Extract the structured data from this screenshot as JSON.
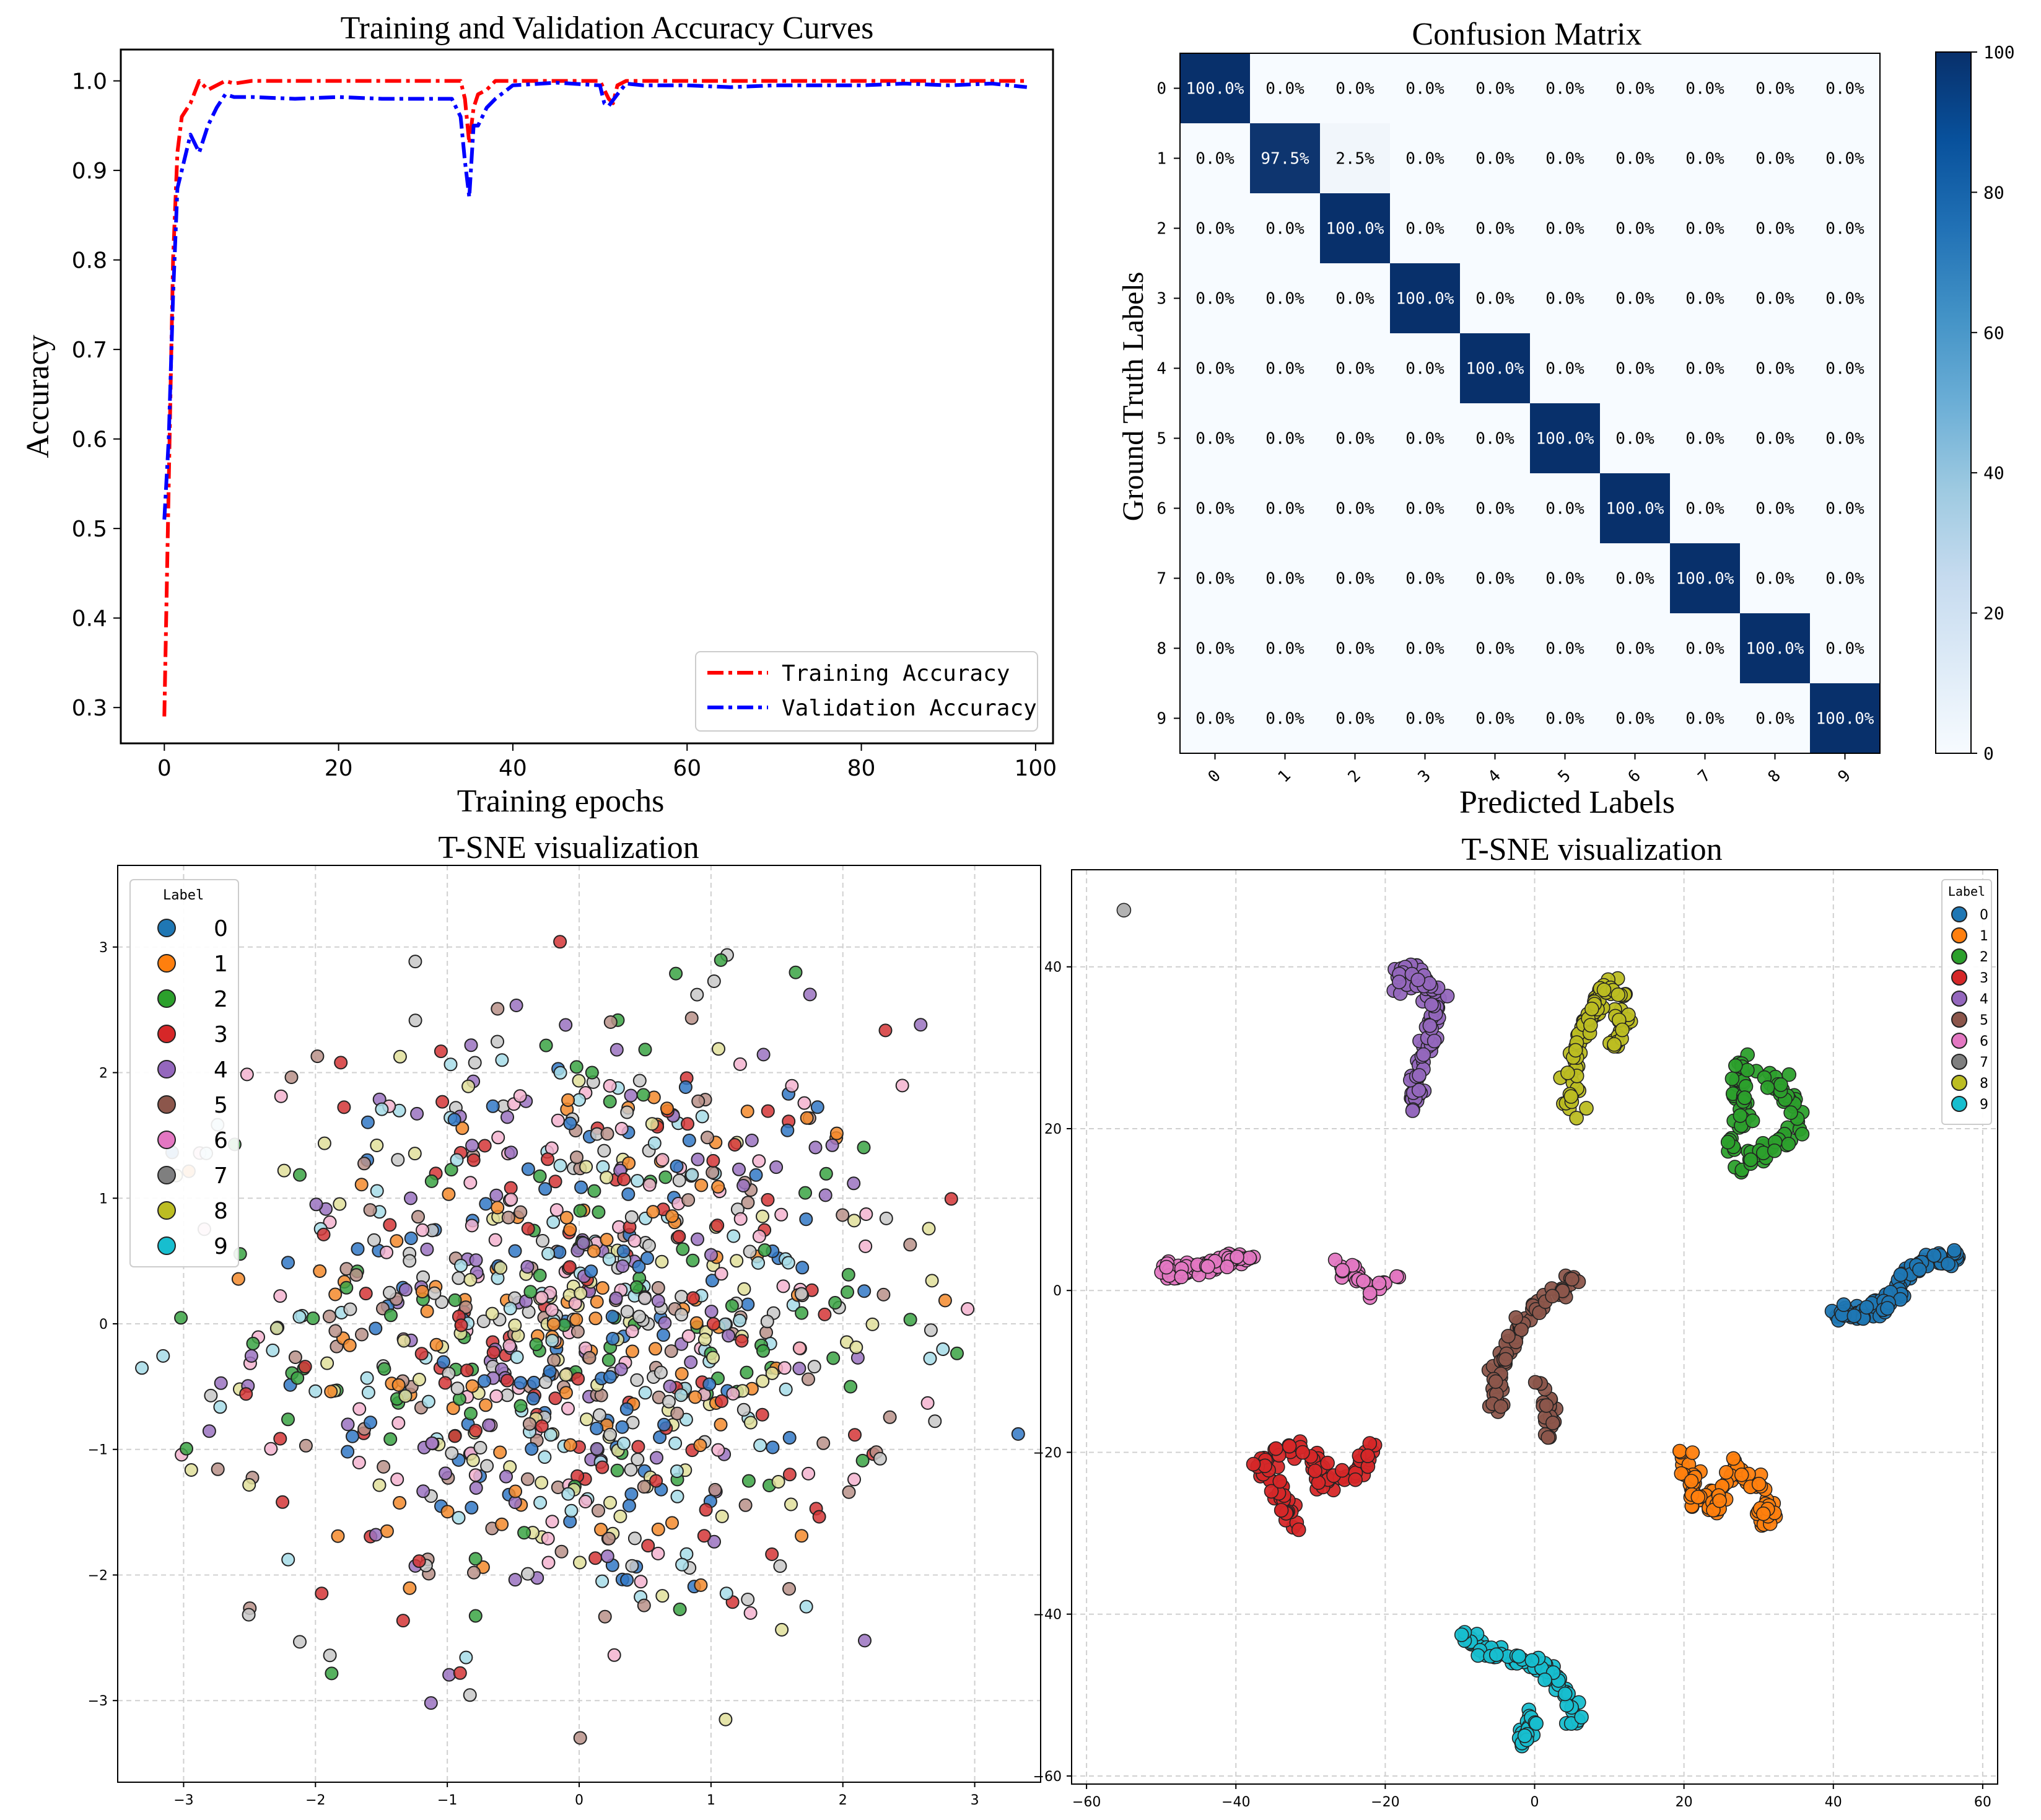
{
  "colors": {
    "tab10": [
      "#1f77b4",
      "#ff7f0e",
      "#2ca02c",
      "#d62728",
      "#9467bd",
      "#8c564b",
      "#e377c2",
      "#7f7f7f",
      "#bcbd22",
      "#17becf"
    ],
    "scatter_fill": [
      "#3178c6",
      "#f3892c",
      "#3aa343",
      "#d43536",
      "#9a72bf",
      "#b89088",
      "#f3b3cf",
      "#c8c8c8",
      "#e0df9a",
      "#a6dce7"
    ],
    "cmap_low": "#f7fbff",
    "cmap_high": "#08306b",
    "train_line": "#ff0000",
    "val_line": "#0000ff",
    "grid": "#d0d0d0"
  },
  "chart_data": [
    {
      "id": "accuracy",
      "type": "line",
      "title": "Training and Validation Accuracy Curves",
      "xlabel": "Training epochs",
      "ylabel": "Accuracy",
      "xlim": [
        -5,
        102
      ],
      "ylim": [
        0.26,
        1.035
      ],
      "xticks": [
        0,
        20,
        40,
        60,
        80,
        100
      ],
      "xtick_labels": [
        "0",
        "20",
        "40",
        "60",
        "80",
        "100"
      ],
      "yticks": [
        0.3,
        0.4,
        0.5,
        0.6,
        0.7,
        0.8,
        0.9,
        1.0
      ],
      "ytick_labels": [
        "0.3",
        "0.4",
        "0.5",
        "0.6",
        "0.7",
        "0.8",
        "0.9",
        "1.0"
      ],
      "legend_position": "lower-right",
      "series": [
        {
          "name": "Training Accuracy",
          "color": "#ff0000",
          "x": [
            0,
            0.5,
            1,
            1.5,
            2,
            3,
            4,
            5,
            6,
            7,
            8,
            10,
            20,
            30,
            34,
            34.5,
            35,
            35.5,
            36,
            37,
            38,
            40,
            45,
            50,
            51,
            51.5,
            52,
            53,
            60,
            70,
            80,
            90,
            95,
            99
          ],
          "y": [
            0.29,
            0.55,
            0.8,
            0.92,
            0.96,
            0.975,
            1.0,
            0.99,
            0.995,
            1.0,
            0.997,
            1.0,
            1.0,
            1.0,
            1.0,
            0.98,
            0.93,
            0.97,
            0.985,
            0.99,
            1.0,
            1.0,
            1.0,
            1.0,
            0.98,
            0.975,
            0.995,
            1.0,
            1.0,
            1.0,
            1.0,
            1.0,
            1.0,
            1.0
          ]
        },
        {
          "name": "Validation Accuracy",
          "color": "#0000ff",
          "x": [
            0,
            0.5,
            1,
            1.5,
            2,
            3,
            4,
            5,
            6,
            7,
            8,
            10,
            15,
            20,
            25,
            30,
            33,
            34,
            34.5,
            35,
            35.5,
            36,
            37,
            38,
            40,
            45,
            50,
            50.5,
            51,
            52,
            53,
            55,
            60,
            65,
            70,
            80,
            85,
            90,
            95,
            99
          ],
          "y": [
            0.51,
            0.6,
            0.76,
            0.88,
            0.9,
            0.94,
            0.92,
            0.95,
            0.97,
            0.985,
            0.982,
            0.982,
            0.98,
            0.982,
            0.98,
            0.98,
            0.98,
            0.96,
            0.91,
            0.87,
            0.95,
            0.95,
            0.97,
            0.98,
            0.995,
            0.998,
            0.995,
            0.975,
            0.972,
            0.985,
            0.997,
            0.995,
            0.995,
            0.993,
            0.995,
            0.995,
            0.997,
            0.995,
            0.997,
            0.993
          ]
        }
      ]
    },
    {
      "id": "confusion",
      "type": "heatmap",
      "title": "Confusion Matrix",
      "xlabel": "Predicted Labels",
      "ylabel": "Ground Truth Labels",
      "row_labels": [
        "0",
        "1",
        "2",
        "3",
        "4",
        "5",
        "6",
        "7",
        "8",
        "9"
      ],
      "col_labels": [
        "0",
        "1",
        "2",
        "3",
        "4",
        "5",
        "6",
        "7",
        "8",
        "9"
      ],
      "values": [
        [
          100,
          0,
          0,
          0,
          0,
          0,
          0,
          0,
          0,
          0
        ],
        [
          0,
          97.5,
          2.5,
          0,
          0,
          0,
          0,
          0,
          0,
          0
        ],
        [
          0,
          0,
          100,
          0,
          0,
          0,
          0,
          0,
          0,
          0
        ],
        [
          0,
          0,
          0,
          100,
          0,
          0,
          0,
          0,
          0,
          0
        ],
        [
          0,
          0,
          0,
          0,
          100,
          0,
          0,
          0,
          0,
          0
        ],
        [
          0,
          0,
          0,
          0,
          0,
          100,
          0,
          0,
          0,
          0
        ],
        [
          0,
          0,
          0,
          0,
          0,
          0,
          100,
          0,
          0,
          0
        ],
        [
          0,
          0,
          0,
          0,
          0,
          0,
          0,
          100,
          0,
          0
        ],
        [
          0,
          0,
          0,
          0,
          0,
          0,
          0,
          0,
          100,
          0
        ],
        [
          0,
          0,
          0,
          0,
          0,
          0,
          0,
          0,
          0,
          100
        ]
      ],
      "cell_labels": [
        [
          "100.0%",
          "0.0%",
          "0.0%",
          "0.0%",
          "0.0%",
          "0.0%",
          "0.0%",
          "0.0%",
          "0.0%",
          "0.0%"
        ],
        [
          "0.0%",
          "97.5%",
          "2.5%",
          "0.0%",
          "0.0%",
          "0.0%",
          "0.0%",
          "0.0%",
          "0.0%",
          "0.0%"
        ],
        [
          "0.0%",
          "0.0%",
          "100.0%",
          "0.0%",
          "0.0%",
          "0.0%",
          "0.0%",
          "0.0%",
          "0.0%",
          "0.0%"
        ],
        [
          "0.0%",
          "0.0%",
          "0.0%",
          "100.0%",
          "0.0%",
          "0.0%",
          "0.0%",
          "0.0%",
          "0.0%",
          "0.0%"
        ],
        [
          "0.0%",
          "0.0%",
          "0.0%",
          "0.0%",
          "100.0%",
          "0.0%",
          "0.0%",
          "0.0%",
          "0.0%",
          "0.0%"
        ],
        [
          "0.0%",
          "0.0%",
          "0.0%",
          "0.0%",
          "0.0%",
          "100.0%",
          "0.0%",
          "0.0%",
          "0.0%",
          "0.0%"
        ],
        [
          "0.0%",
          "0.0%",
          "0.0%",
          "0.0%",
          "0.0%",
          "0.0%",
          "100.0%",
          "0.0%",
          "0.0%",
          "0.0%"
        ],
        [
          "0.0%",
          "0.0%",
          "0.0%",
          "0.0%",
          "0.0%",
          "0.0%",
          "0.0%",
          "100.0%",
          "0.0%",
          "0.0%"
        ],
        [
          "0.0%",
          "0.0%",
          "0.0%",
          "0.0%",
          "0.0%",
          "0.0%",
          "0.0%",
          "0.0%",
          "100.0%",
          "0.0%"
        ],
        [
          "0.0%",
          "0.0%",
          "0.0%",
          "0.0%",
          "0.0%",
          "0.0%",
          "0.0%",
          "0.0%",
          "0.0%",
          "100.0%"
        ]
      ],
      "colorbar_range": [
        0,
        100
      ],
      "colorbar_ticks": [
        0,
        20,
        40,
        60,
        80,
        100
      ],
      "colorbar_tick_labels": [
        "0",
        "20",
        "40",
        "60",
        "80",
        "100"
      ]
    },
    {
      "id": "tsne-before",
      "type": "scatter",
      "title": "T-SNE visualization",
      "xlim": [
        -3.5,
        3.5
      ],
      "ylim": [
        -3.65,
        3.65
      ],
      "xticks": [
        -3,
        -2,
        -1,
        0,
        1,
        2,
        3
      ],
      "xtick_labels": [
        "−3",
        "−2",
        "−1",
        "0",
        "1",
        "2",
        "3"
      ],
      "yticks": [
        -3,
        -2,
        -1,
        0,
        1,
        2,
        3
      ],
      "ytick_labels": [
        "−3",
        "−2",
        "−1",
        "0",
        "1",
        "2",
        "3"
      ],
      "grid": true,
      "legend_title": "Label",
      "legend_labels": [
        "0",
        "1",
        "2",
        "3",
        "4",
        "5",
        "6",
        "7",
        "8",
        "9"
      ],
      "legend_position": "upper-left",
      "distribution": "approximately 1000 points, 100 per class, all classes intermixed in a single roughly Gaussian cloud centered at (0, 0) with standard deviation about 1.2",
      "points_per_class": 100,
      "cloud_center": [
        0,
        0
      ],
      "cloud_std": 1.2
    },
    {
      "id": "tsne-after",
      "type": "scatter",
      "title": "T-SNE visualization",
      "xlim": [
        -62,
        62
      ],
      "ylim": [
        -61,
        52
      ],
      "xticks": [
        -60,
        -40,
        -20,
        0,
        20,
        40,
        60
      ],
      "xtick_labels": [
        "−60",
        "−40",
        "−20",
        "0",
        "20",
        "40",
        "60"
      ],
      "yticks": [
        -60,
        -40,
        -20,
        0,
        20,
        40
      ],
      "ytick_labels": [
        "−60",
        "−40",
        "−20",
        "0",
        "20",
        "40"
      ],
      "grid": true,
      "legend_title": "Label",
      "legend_labels": [
        "0",
        "1",
        "2",
        "3",
        "4",
        "5",
        "6",
        "7",
        "8",
        "9"
      ],
      "legend_position": "upper-right",
      "points_per_class": 100,
      "cluster_paths": [
        [
          [
            40,
            -3
          ],
          [
            44,
            -3
          ],
          [
            48,
            -1
          ],
          [
            50,
            2
          ],
          [
            53,
            4
          ],
          [
            57,
            4
          ]
        ],
        [
          [
            20,
            -20
          ],
          [
            21,
            -25
          ],
          [
            24,
            -27
          ],
          [
            27,
            -22
          ],
          [
            31,
            -25
          ],
          [
            31,
            -29
          ]
        ],
        [
          [
            26,
            17
          ],
          [
            28,
            22
          ],
          [
            27,
            27
          ],
          [
            30,
            28
          ],
          [
            34,
            24
          ],
          [
            35,
            21
          ],
          [
            33,
            18
          ],
          [
            28,
            16
          ]
        ],
        [
          [
            -32,
            -30
          ],
          [
            -34,
            -25
          ],
          [
            -37,
            -21
          ],
          [
            -33,
            -19
          ],
          [
            -29,
            -21
          ],
          [
            -28,
            -24
          ],
          [
            -24,
            -23
          ],
          [
            -22,
            -19
          ]
        ],
        [
          [
            -16,
            22
          ],
          [
            -16,
            27
          ],
          [
            -14,
            31
          ],
          [
            -13,
            35
          ],
          [
            -15,
            39
          ],
          [
            -18,
            40
          ],
          [
            -18,
            37
          ]
        ],
        [
          [
            -5,
            -15
          ],
          [
            -5,
            -10
          ],
          [
            -3,
            -6
          ],
          [
            -1,
            -3
          ],
          [
            2,
            -1
          ],
          [
            4,
            0
          ],
          [
            5,
            2
          ]
        ],
        [
          [
            -50,
            3
          ],
          [
            -48,
            2
          ],
          [
            -45,
            3
          ],
          [
            -41,
            4
          ],
          [
            -38,
            4
          ]
        ],
        [
          [
            -55,
            47
          ],
          [
            -55,
            47
          ]
        ],
        [
          [
            5,
            21
          ],
          [
            5,
            26
          ],
          [
            6,
            31
          ],
          [
            8,
            35
          ],
          [
            10,
            38
          ],
          [
            12,
            36
          ],
          [
            11,
            30
          ]
        ],
        [
          [
            -10,
            -42
          ],
          [
            -6,
            -45
          ],
          [
            0,
            -46
          ],
          [
            3,
            -48
          ],
          [
            5,
            -50
          ],
          [
            5,
            -53
          ]
        ]
      ],
      "extra_paths": {
        "5": [
          [
            0,
            -12
          ],
          [
            2,
            -14
          ],
          [
            2,
            -18
          ]
        ],
        "6": [
          [
            -27,
            3
          ],
          [
            -24,
            2
          ],
          [
            -22,
            0
          ],
          [
            -18,
            2
          ]
        ],
        "9": [
          [
            0,
            -52
          ],
          [
            -1,
            -55
          ],
          [
            -2,
            -56
          ]
        ]
      },
      "cluster_spread": [
        0.6,
        0.6,
        0.7,
        0.6,
        0.6,
        0.5,
        0.45,
        0.0,
        0.6,
        0.5
      ]
    }
  ]
}
